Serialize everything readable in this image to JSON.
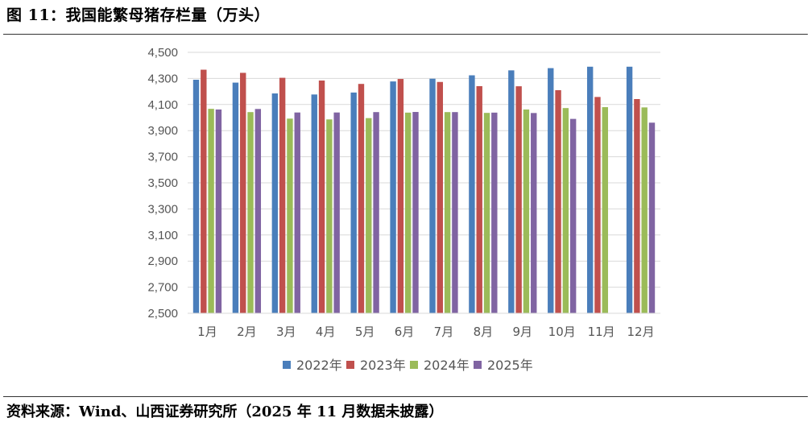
{
  "title": "图 11：我国能繁母猪存栏量（万头）",
  "source": "资料来源：Wind、山西证券研究所（2025 年 11 月数据未披露）",
  "chart_data": {
    "type": "bar",
    "categories": [
      "1月",
      "2月",
      "3月",
      "4月",
      "5月",
      "6月",
      "7月",
      "8月",
      "9月",
      "10月",
      "11月",
      "12月"
    ],
    "ylim": [
      2500,
      4500
    ],
    "yticks": [
      "2,500",
      "2,700",
      "2,900",
      "3,100",
      "3,300",
      "3,500",
      "3,700",
      "3,900",
      "4,100",
      "4,300",
      "4,500"
    ],
    "grid": true,
    "legend_position": "bottom",
    "series": [
      {
        "name": "2022年",
        "color": "#4a7ebb",
        "values": [
          4290,
          4268,
          4185,
          4177,
          4192,
          4277,
          4298,
          4324,
          4362,
          4379,
          4390,
          4390
        ]
      },
      {
        "name": "2023年",
        "color": "#c0504d",
        "values": [
          4367,
          4343,
          4305,
          4284,
          4258,
          4296,
          4273,
          4241,
          4240,
          4210,
          4158,
          4142
        ]
      },
      {
        "name": "2024年",
        "color": "#9bbb59",
        "values": [
          4067,
          4042,
          3992,
          3986,
          3996,
          4038,
          4042,
          4036,
          4062,
          4073,
          4080,
          4078
        ]
      },
      {
        "name": "2025年",
        "color": "#8064a2",
        "values": [
          4062,
          4066,
          4039,
          4039,
          4042,
          4043,
          4042,
          4038,
          4035,
          3990,
          null,
          3961
        ]
      }
    ]
  }
}
